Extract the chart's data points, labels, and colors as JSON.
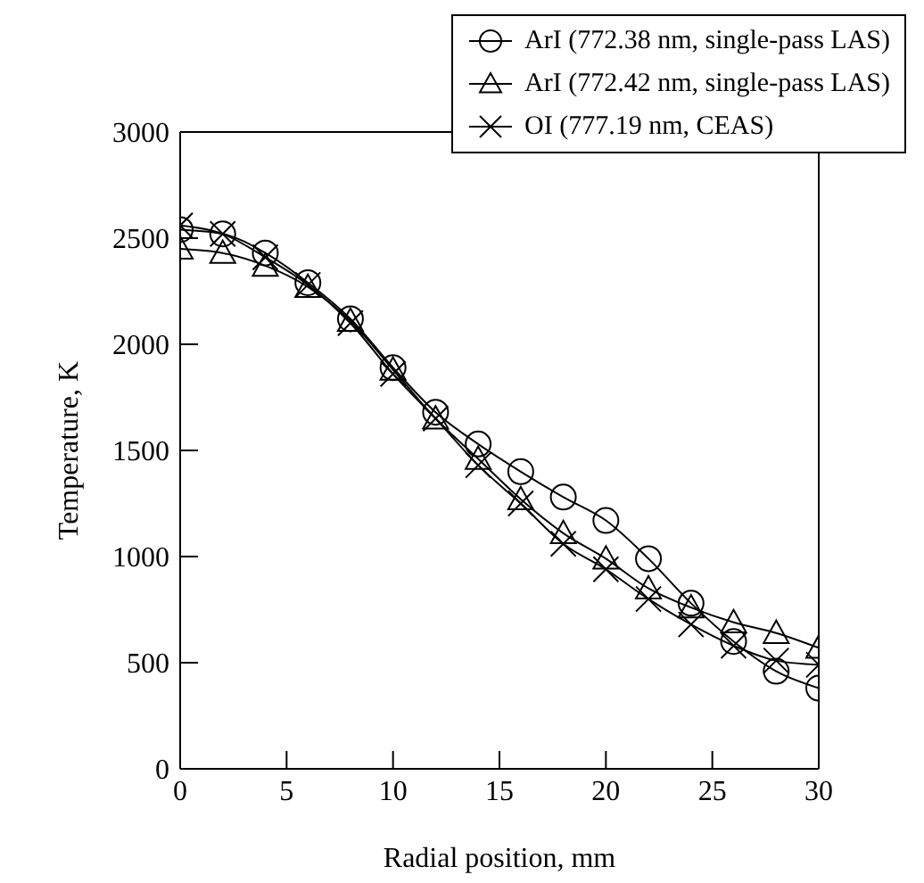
{
  "chart_data": {
    "type": "line",
    "xlabel": "Radial position, mm",
    "ylabel": "Temperature, K",
    "x": [
      0,
      2,
      4,
      6,
      8,
      10,
      12,
      14,
      16,
      18,
      20,
      22,
      24,
      26,
      28,
      30
    ],
    "series": [
      {
        "name": "ArI (772.38 nm, single-pass LAS)",
        "color": "#000000",
        "marker": "circle",
        "values": [
          2540,
          2520,
          2430,
          2290,
          2120,
          1890,
          1680,
          1530,
          1400,
          1280,
          1170,
          990,
          780,
          600,
          460,
          380
        ]
      },
      {
        "name": "ArI (772.42 nm, single-pass LAS)",
        "color": "#000000",
        "marker": "triangle",
        "values": [
          2450,
          2430,
          2370,
          2270,
          2110,
          1880,
          1650,
          1460,
          1270,
          1110,
          990,
          850,
          760,
          690,
          640,
          570
        ]
      },
      {
        "name": "OI (777.19 nm, CEAS)",
        "color": "#000000",
        "marker": "cross",
        "values": [
          2560,
          2520,
          2410,
          2280,
          2100,
          1860,
          1650,
          1430,
          1250,
          1060,
          940,
          800,
          680,
          580,
          510,
          490
        ]
      }
    ],
    "xlim": [
      0,
      30
    ],
    "xticks": [
      0,
      5,
      10,
      15,
      20,
      25,
      30
    ],
    "ylim": [
      0,
      3000
    ],
    "yticks": [
      0,
      500,
      1000,
      1500,
      2000,
      2500,
      3000
    ],
    "grid": false,
    "legend": "top right",
    "line_style": "solid"
  }
}
